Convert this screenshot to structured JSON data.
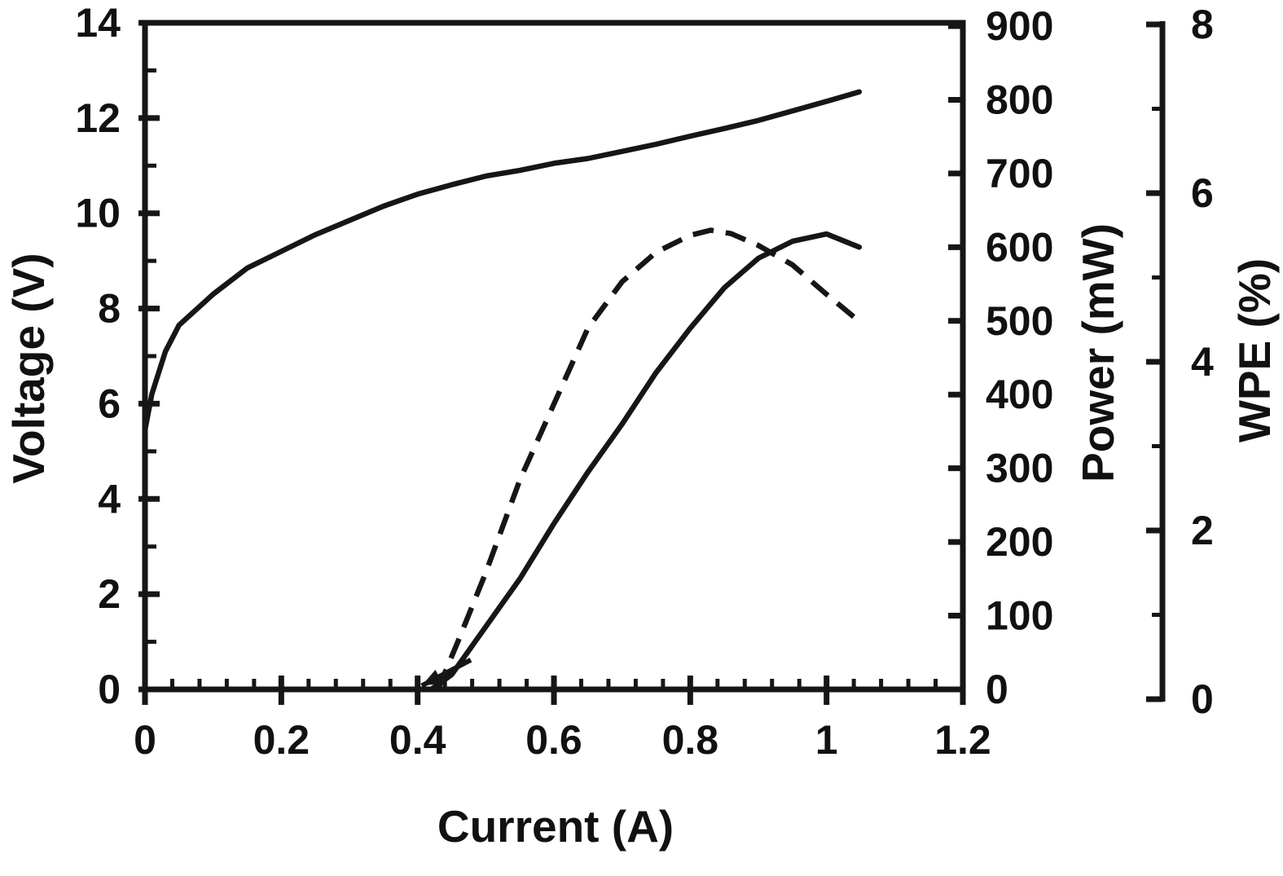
{
  "figure": {
    "background": "#ffffff",
    "line_color": "#161616",
    "text_color": "#111111"
  },
  "chart_data": {
    "type": "line",
    "title": "",
    "grid": false,
    "legend": "none",
    "axes": {
      "x": {
        "label": "Current (A)",
        "range": [
          0,
          1.2
        ],
        "major_ticks": [
          0,
          0.2,
          0.4,
          0.6,
          0.8,
          1,
          1.2
        ],
        "tick_labels": [
          "0",
          "0.2",
          "0.4",
          "0.6",
          "0.8",
          "1",
          "1.2"
        ],
        "minor_step": 0.04
      },
      "y_left": {
        "label": "Voltage (V)",
        "range": [
          0,
          14
        ],
        "major_ticks": [
          0,
          2,
          4,
          6,
          8,
          10,
          12,
          14
        ],
        "tick_labels": [
          "0",
          "2",
          "4",
          "6",
          "8",
          "10",
          "12",
          "14"
        ],
        "minor_step": 1
      },
      "y_right_power": {
        "label": "Power (mW)",
        "range": [
          0,
          900
        ],
        "major_ticks": [
          0,
          100,
          200,
          300,
          400,
          500,
          600,
          700,
          800,
          900
        ],
        "tick_labels": [
          "0",
          "100",
          "200",
          "300",
          "400",
          "500",
          "600",
          "700",
          "800",
          "900"
        ],
        "minor_step": 0
      },
      "y_right_wpe": {
        "label": "WPE (%)",
        "range": [
          0,
          8
        ],
        "major_ticks": [
          0,
          2,
          4,
          6,
          8
        ],
        "tick_labels": [
          "0",
          "2",
          "4",
          "6",
          "8"
        ],
        "minor_step": 1
      }
    },
    "series": [
      {
        "name": "voltage-current",
        "axis": "y_left",
        "style": "solid",
        "x": [
          0,
          0.01,
          0.03,
          0.05,
          0.1,
          0.15,
          0.2,
          0.25,
          0.3,
          0.35,
          0.4,
          0.45,
          0.5,
          0.55,
          0.6,
          0.65,
          0.7,
          0.75,
          0.8,
          0.85,
          0.9,
          0.95,
          1.0,
          1.048
        ],
        "y": [
          5.45,
          6.2,
          7.1,
          7.65,
          8.3,
          8.85,
          9.2,
          9.55,
          9.85,
          10.15,
          10.4,
          10.6,
          10.78,
          10.9,
          11.05,
          11.15,
          11.3,
          11.45,
          11.62,
          11.78,
          11.95,
          12.15,
          12.35,
          12.55
        ]
      },
      {
        "name": "output-power",
        "axis": "y_right_power",
        "style": "solid",
        "x": [
          0.42,
          0.45,
          0.5,
          0.55,
          0.6,
          0.65,
          0.7,
          0.75,
          0.8,
          0.85,
          0.9,
          0.95,
          1.0,
          1.048
        ],
        "y": [
          0,
          20,
          85,
          150,
          225,
          295,
          360,
          430,
          490,
          545,
          585,
          608,
          618,
          600
        ]
      },
      {
        "name": "wall-plug-efficiency",
        "axis": "y_right_wpe",
        "style": "dashed",
        "x": [
          0.43,
          0.46,
          0.5,
          0.55,
          0.6,
          0.65,
          0.7,
          0.75,
          0.8,
          0.83,
          0.86,
          0.9,
          0.95,
          1.0,
          1.045
        ],
        "y": [
          0.12,
          0.7,
          1.5,
          2.6,
          3.5,
          4.4,
          4.95,
          5.3,
          5.5,
          5.56,
          5.52,
          5.38,
          5.15,
          4.8,
          4.5
        ]
      }
    ],
    "annotations": [
      {
        "type": "arrow",
        "name": "threshold-arrow",
        "axis": "y_right_power",
        "from": [
          0.478,
          40
        ],
        "to": [
          0.406,
          5
        ]
      }
    ]
  }
}
